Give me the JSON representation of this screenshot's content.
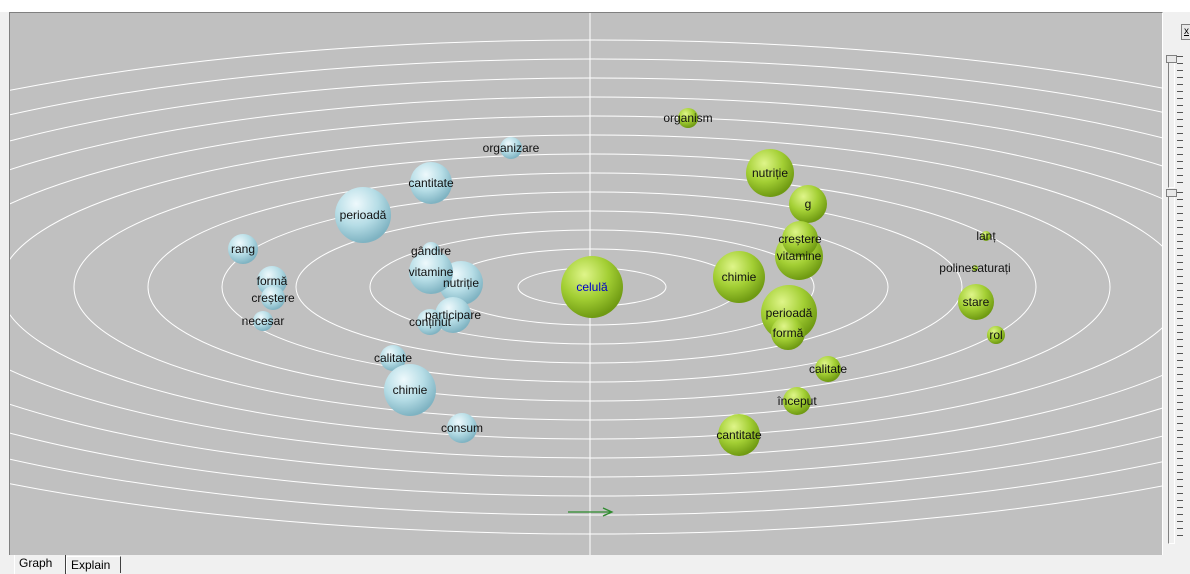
{
  "tabs": [
    {
      "label": "Graph",
      "active": true
    },
    {
      "label": "Explain",
      "active": false
    }
  ],
  "panel": {
    "close_label": "x"
  },
  "graph": {
    "background": "#c0c0c0",
    "ring_color": "#ffffff",
    "axis_color": "#ffffff",
    "arrow_color": "#2e8b2e",
    "center_label_color": "#0000cc",
    "left_node_color": "#b4dde6",
    "right_node_color": "#9acd32",
    "center": {
      "label": "celulă"
    },
    "left_nodes": [
      {
        "label": "organizare"
      },
      {
        "label": "cantitate"
      },
      {
        "label": "perioadă"
      },
      {
        "label": "rang"
      },
      {
        "label": "gândire"
      },
      {
        "label": "nutriție"
      },
      {
        "label": "vitamine"
      },
      {
        "label": "formă"
      },
      {
        "label": "creștere"
      },
      {
        "label": "necesar"
      },
      {
        "label": "participare"
      },
      {
        "label": "conținut"
      },
      {
        "label": "calitate"
      },
      {
        "label": "chimie"
      },
      {
        "label": "consum"
      }
    ],
    "right_nodes": [
      {
        "label": "organism"
      },
      {
        "label": "nutriție"
      },
      {
        "label": "g"
      },
      {
        "label": "vitamine"
      },
      {
        "label": "creștere"
      },
      {
        "label": "chimie"
      },
      {
        "label": "perioadă"
      },
      {
        "label": "formă"
      },
      {
        "label": "calitate"
      },
      {
        "label": "început"
      },
      {
        "label": "cantitate"
      },
      {
        "label": "lanț"
      },
      {
        "label": "polinesaturați"
      },
      {
        "label": "stare"
      },
      {
        "label": "rol"
      }
    ]
  }
}
